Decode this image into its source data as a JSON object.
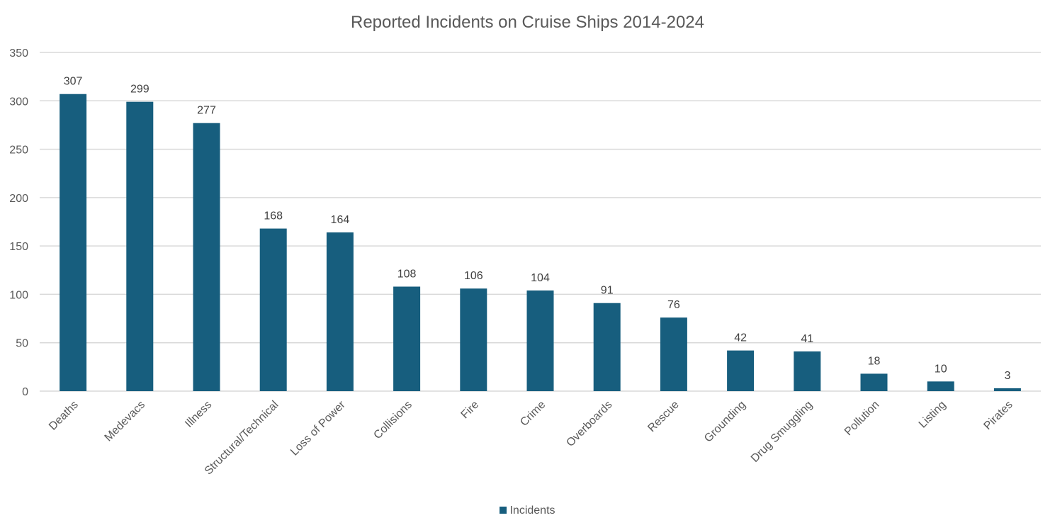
{
  "chart_data": {
    "type": "bar",
    "title": "Reported Incidents on Cruise Ships 2014-2024",
    "xlabel": "",
    "ylabel": "",
    "categories": [
      "Deaths",
      "Medevacs",
      "Illness",
      "Structural/Technical",
      "Loss of Power",
      "Collisions",
      "Fire",
      "Crime",
      "Overboards",
      "Rescue",
      "Grounding",
      "Drug Smuggling",
      "Pollution",
      "Listing",
      "Pirates"
    ],
    "series": [
      {
        "name": "Incidents",
        "values": [
          307,
          299,
          277,
          168,
          164,
          108,
          106,
          104,
          91,
          76,
          42,
          41,
          18,
          10,
          3
        ]
      }
    ],
    "ylim": [
      0,
      350
    ],
    "yticks": [
      0,
      50,
      100,
      150,
      200,
      250,
      300,
      350
    ],
    "grid": true,
    "data_labels": true,
    "legend": "bottom",
    "colors": {
      "bar": "#175e7e",
      "grid": "#d9d9d9",
      "text": "#595959"
    }
  }
}
